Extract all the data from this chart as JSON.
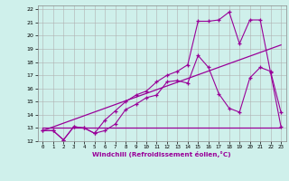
{
  "xlabel": "Windchill (Refroidissement éolien,°C)",
  "bg_color": "#cff0eb",
  "grid_color": "#b0b0b0",
  "line_color": "#990099",
  "xlim": [
    -0.5,
    23.5
  ],
  "ylim": [
    12,
    22.3
  ],
  "xticks": [
    0,
    1,
    2,
    3,
    4,
    5,
    6,
    7,
    8,
    9,
    10,
    11,
    12,
    13,
    14,
    15,
    16,
    17,
    18,
    19,
    20,
    21,
    22,
    23
  ],
  "yticks": [
    12,
    13,
    14,
    15,
    16,
    17,
    18,
    19,
    20,
    21,
    22
  ],
  "line1_x": [
    0,
    1,
    2,
    3,
    4,
    5,
    6,
    7,
    8,
    9,
    10,
    11,
    12,
    13,
    14,
    15,
    16,
    17,
    18,
    19,
    20,
    21,
    22,
    23
  ],
  "line1_y": [
    12.8,
    12.8,
    12.1,
    13.1,
    13.0,
    12.6,
    12.8,
    13.3,
    14.4,
    14.8,
    15.3,
    15.5,
    16.5,
    16.6,
    16.4,
    18.5,
    17.6,
    15.6,
    14.5,
    14.2,
    16.8,
    17.6,
    17.3,
    14.2
  ],
  "line2_x": [
    0,
    1,
    2,
    3,
    4,
    5,
    6,
    7,
    8,
    9,
    10,
    11,
    12,
    13,
    14,
    15,
    16,
    17,
    18,
    19,
    20,
    21,
    22,
    23
  ],
  "line2_y": [
    12.8,
    12.8,
    12.1,
    13.1,
    13.0,
    12.6,
    13.6,
    14.3,
    15.0,
    15.5,
    15.8,
    16.5,
    17.0,
    17.3,
    17.8,
    21.1,
    21.1,
    21.2,
    21.8,
    19.4,
    21.2,
    21.2,
    17.2,
    13.1
  ],
  "line3_x": [
    0,
    23
  ],
  "line3_y": [
    13.0,
    13.0
  ],
  "regline_x": [
    0,
    23
  ],
  "regline_y": [
    12.8,
    19.3
  ]
}
